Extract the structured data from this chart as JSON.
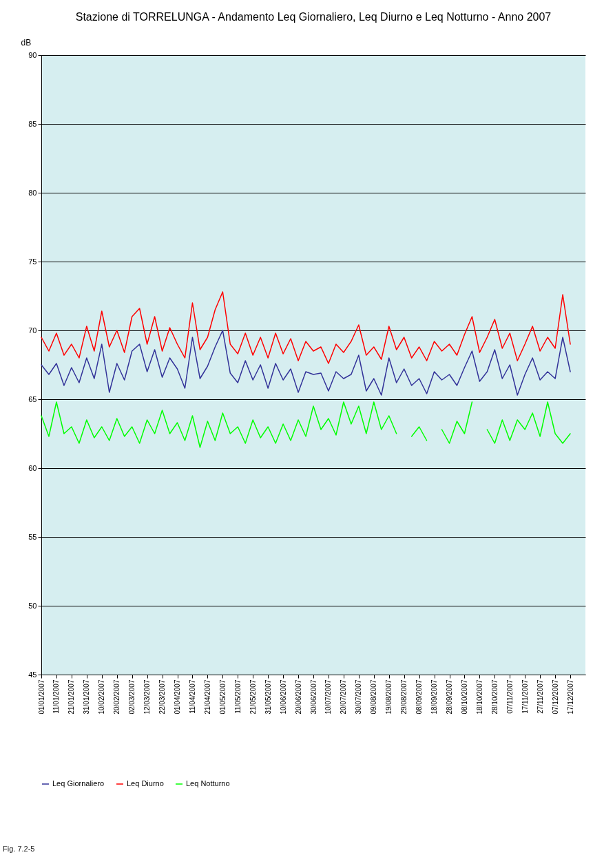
{
  "chart_data": {
    "type": "line",
    "title": "Stazione di TORRELUNGA - Andamento Leq Giornaliero, Leq Diurno e Leq Notturno - Anno 2007",
    "ylabel": "dB",
    "annotations": [
      "Fig. 7.2-5"
    ],
    "x": [
      "2007-01-01",
      "2007-01-06",
      "2007-01-11",
      "2007-01-16",
      "2007-01-21",
      "2007-01-26",
      "2007-01-31",
      "2007-02-05",
      "2007-02-10",
      "2007-02-15",
      "2007-02-20",
      "2007-02-25",
      "2007-03-02",
      "2007-03-07",
      "2007-03-12",
      "2007-03-17",
      "2007-03-22",
      "2007-03-27",
      "2007-04-01",
      "2007-04-06",
      "2007-04-11",
      "2007-04-16",
      "2007-04-21",
      "2007-04-26",
      "2007-05-01",
      "2007-05-06",
      "2007-05-11",
      "2007-05-16",
      "2007-05-21",
      "2007-05-26",
      "2007-05-31",
      "2007-06-05",
      "2007-06-10",
      "2007-06-15",
      "2007-06-20",
      "2007-06-25",
      "2007-06-30",
      "2007-07-05",
      "2007-07-10",
      "2007-07-15",
      "2007-07-20",
      "2007-07-25",
      "2007-07-30",
      "2007-08-04",
      "2007-08-09",
      "2007-08-14",
      "2007-08-19",
      "2007-08-24",
      "2007-08-29",
      "2007-09-03",
      "2007-09-08",
      "2007-09-13",
      "2007-09-18",
      "2007-09-23",
      "2007-09-28",
      "2007-10-03",
      "2007-10-08",
      "2007-10-13",
      "2007-10-18",
      "2007-10-23",
      "2007-10-28",
      "2007-11-02",
      "2007-11-07",
      "2007-11-12",
      "2007-11-17",
      "2007-11-22",
      "2007-11-27",
      "2007-12-02",
      "2007-12-07",
      "2007-12-12",
      "2007-12-17"
    ],
    "series": [
      {
        "name": "Leq Giornaliero",
        "color": "#333399",
        "values": [
          67.5,
          66.8,
          67.6,
          66.0,
          67.3,
          66.2,
          68.0,
          66.5,
          69.0,
          65.5,
          67.6,
          66.4,
          68.5,
          69.0,
          67.0,
          68.6,
          66.6,
          68.0,
          67.2,
          65.8,
          69.5,
          66.5,
          67.4,
          68.8,
          70.0,
          66.9,
          66.2,
          67.8,
          66.4,
          67.5,
          65.8,
          67.6,
          66.4,
          67.2,
          65.5,
          67.0,
          66.8,
          66.9,
          65.6,
          67.0,
          66.5,
          66.8,
          68.2,
          65.6,
          66.5,
          65.3,
          68.0,
          66.2,
          67.2,
          66.0,
          66.5,
          65.4,
          67.0,
          66.4,
          66.8,
          66.0,
          67.3,
          68.5,
          66.3,
          67.0,
          68.6,
          66.5,
          67.5,
          65.3,
          66.8,
          68.0,
          66.4,
          67.0,
          66.5,
          69.5,
          67.0
        ]
      },
      {
        "name": "Leq Diurno",
        "color": "#ff0000",
        "values": [
          69.5,
          68.5,
          69.8,
          68.2,
          69.0,
          68.0,
          70.3,
          68.5,
          71.4,
          68.8,
          70.0,
          68.4,
          71.0,
          71.6,
          69.0,
          71.0,
          68.5,
          70.2,
          69.0,
          68.0,
          72.0,
          68.6,
          69.5,
          71.5,
          72.8,
          69.0,
          68.3,
          69.8,
          68.2,
          69.5,
          68.0,
          69.8,
          68.3,
          69.4,
          67.8,
          69.2,
          68.5,
          68.8,
          67.6,
          69.0,
          68.4,
          69.2,
          70.4,
          68.2,
          68.8,
          67.9,
          70.3,
          68.6,
          69.5,
          68.0,
          68.8,
          67.8,
          69.2,
          68.5,
          69.0,
          68.2,
          69.7,
          71.0,
          68.4,
          69.5,
          70.8,
          68.7,
          69.8,
          67.8,
          69.0,
          70.3,
          68.5,
          69.5,
          68.7,
          72.6,
          69.0
        ]
      },
      {
        "name": "Leq Notturno",
        "color": "#00ff00",
        "values": [
          63.8,
          62.3,
          64.8,
          62.5,
          63.0,
          61.8,
          63.5,
          62.2,
          63.0,
          62.0,
          63.6,
          62.3,
          63.0,
          61.8,
          63.5,
          62.5,
          64.2,
          62.5,
          63.3,
          62.0,
          63.8,
          61.5,
          63.4,
          62.0,
          64.0,
          62.5,
          63.0,
          61.8,
          63.5,
          62.2,
          63.0,
          61.8,
          63.2,
          62.0,
          63.5,
          62.3,
          64.5,
          62.8,
          63.6,
          62.4,
          64.8,
          63.2,
          64.5,
          62.5,
          64.8,
          62.8,
          63.8,
          62.5,
          null,
          62.3,
          63.0,
          62.0,
          null,
          62.8,
          61.8,
          63.4,
          62.5,
          64.8,
          null,
          62.8,
          61.8,
          63.5,
          62.0,
          63.5,
          62.8,
          64.0,
          62.3,
          64.8,
          62.5,
          61.8,
          62.5
        ]
      }
    ],
    "xlim": [
      "2007-01-01",
      "2007-12-27"
    ],
    "xticks": [
      {
        "value": "2007-01-01",
        "label": "01/01/2007"
      },
      {
        "value": "2007-01-11",
        "label": "11/01/2007"
      },
      {
        "value": "2007-01-21",
        "label": "21/01/2007"
      },
      {
        "value": "2007-01-31",
        "label": "31/01/2007"
      },
      {
        "value": "2007-02-10",
        "label": "10/02/2007"
      },
      {
        "value": "2007-02-20",
        "label": "20/02/2007"
      },
      {
        "value": "2007-03-02",
        "label": "02/03/2007"
      },
      {
        "value": "2007-03-12",
        "label": "12/03/2007"
      },
      {
        "value": "2007-03-22",
        "label": "22/03/2007"
      },
      {
        "value": "2007-04-01",
        "label": "01/04/2007"
      },
      {
        "value": "2007-04-11",
        "label": "11/04/2007"
      },
      {
        "value": "2007-04-21",
        "label": "21/04/2007"
      },
      {
        "value": "2007-05-01",
        "label": "01/05/2007"
      },
      {
        "value": "2007-05-11",
        "label": "11/05/2007"
      },
      {
        "value": "2007-05-21",
        "label": "21/05/2007"
      },
      {
        "value": "2007-05-31",
        "label": "31/05/2007"
      },
      {
        "value": "2007-06-10",
        "label": "10/06/2007"
      },
      {
        "value": "2007-06-20",
        "label": "20/06/2007"
      },
      {
        "value": "2007-06-30",
        "label": "30/06/2007"
      },
      {
        "value": "2007-07-10",
        "label": "10/07/2007"
      },
      {
        "value": "2007-07-20",
        "label": "20/07/2007"
      },
      {
        "value": "2007-07-30",
        "label": "30/07/2007"
      },
      {
        "value": "2007-08-09",
        "label": "09/08/2007"
      },
      {
        "value": "2007-08-19",
        "label": "19/08/2007"
      },
      {
        "value": "2007-08-29",
        "label": "29/08/2007"
      },
      {
        "value": "2007-09-08",
        "label": "08/09/2007"
      },
      {
        "value": "2007-09-18",
        "label": "18/09/2007"
      },
      {
        "value": "2007-09-28",
        "label": "28/09/2007"
      },
      {
        "value": "2007-10-08",
        "label": "08/10/2007"
      },
      {
        "value": "2007-10-18",
        "label": "18/10/2007"
      },
      {
        "value": "2007-10-28",
        "label": "28/10/2007"
      },
      {
        "value": "2007-11-07",
        "label": "07/11/2007"
      },
      {
        "value": "2007-11-17",
        "label": "17/11/2007"
      },
      {
        "value": "2007-11-27",
        "label": "27/11/2007"
      },
      {
        "value": "2007-12-07",
        "label": "07/12/2007"
      },
      {
        "value": "2007-12-17",
        "label": "17/12/2007"
      }
    ],
    "ylim": [
      45,
      90
    ],
    "yticks": [
      45,
      50,
      55,
      60,
      65,
      70,
      75,
      80,
      85,
      90
    ],
    "grid": "y",
    "legend": "bottom",
    "marker": "none",
    "line_style": "solid"
  }
}
